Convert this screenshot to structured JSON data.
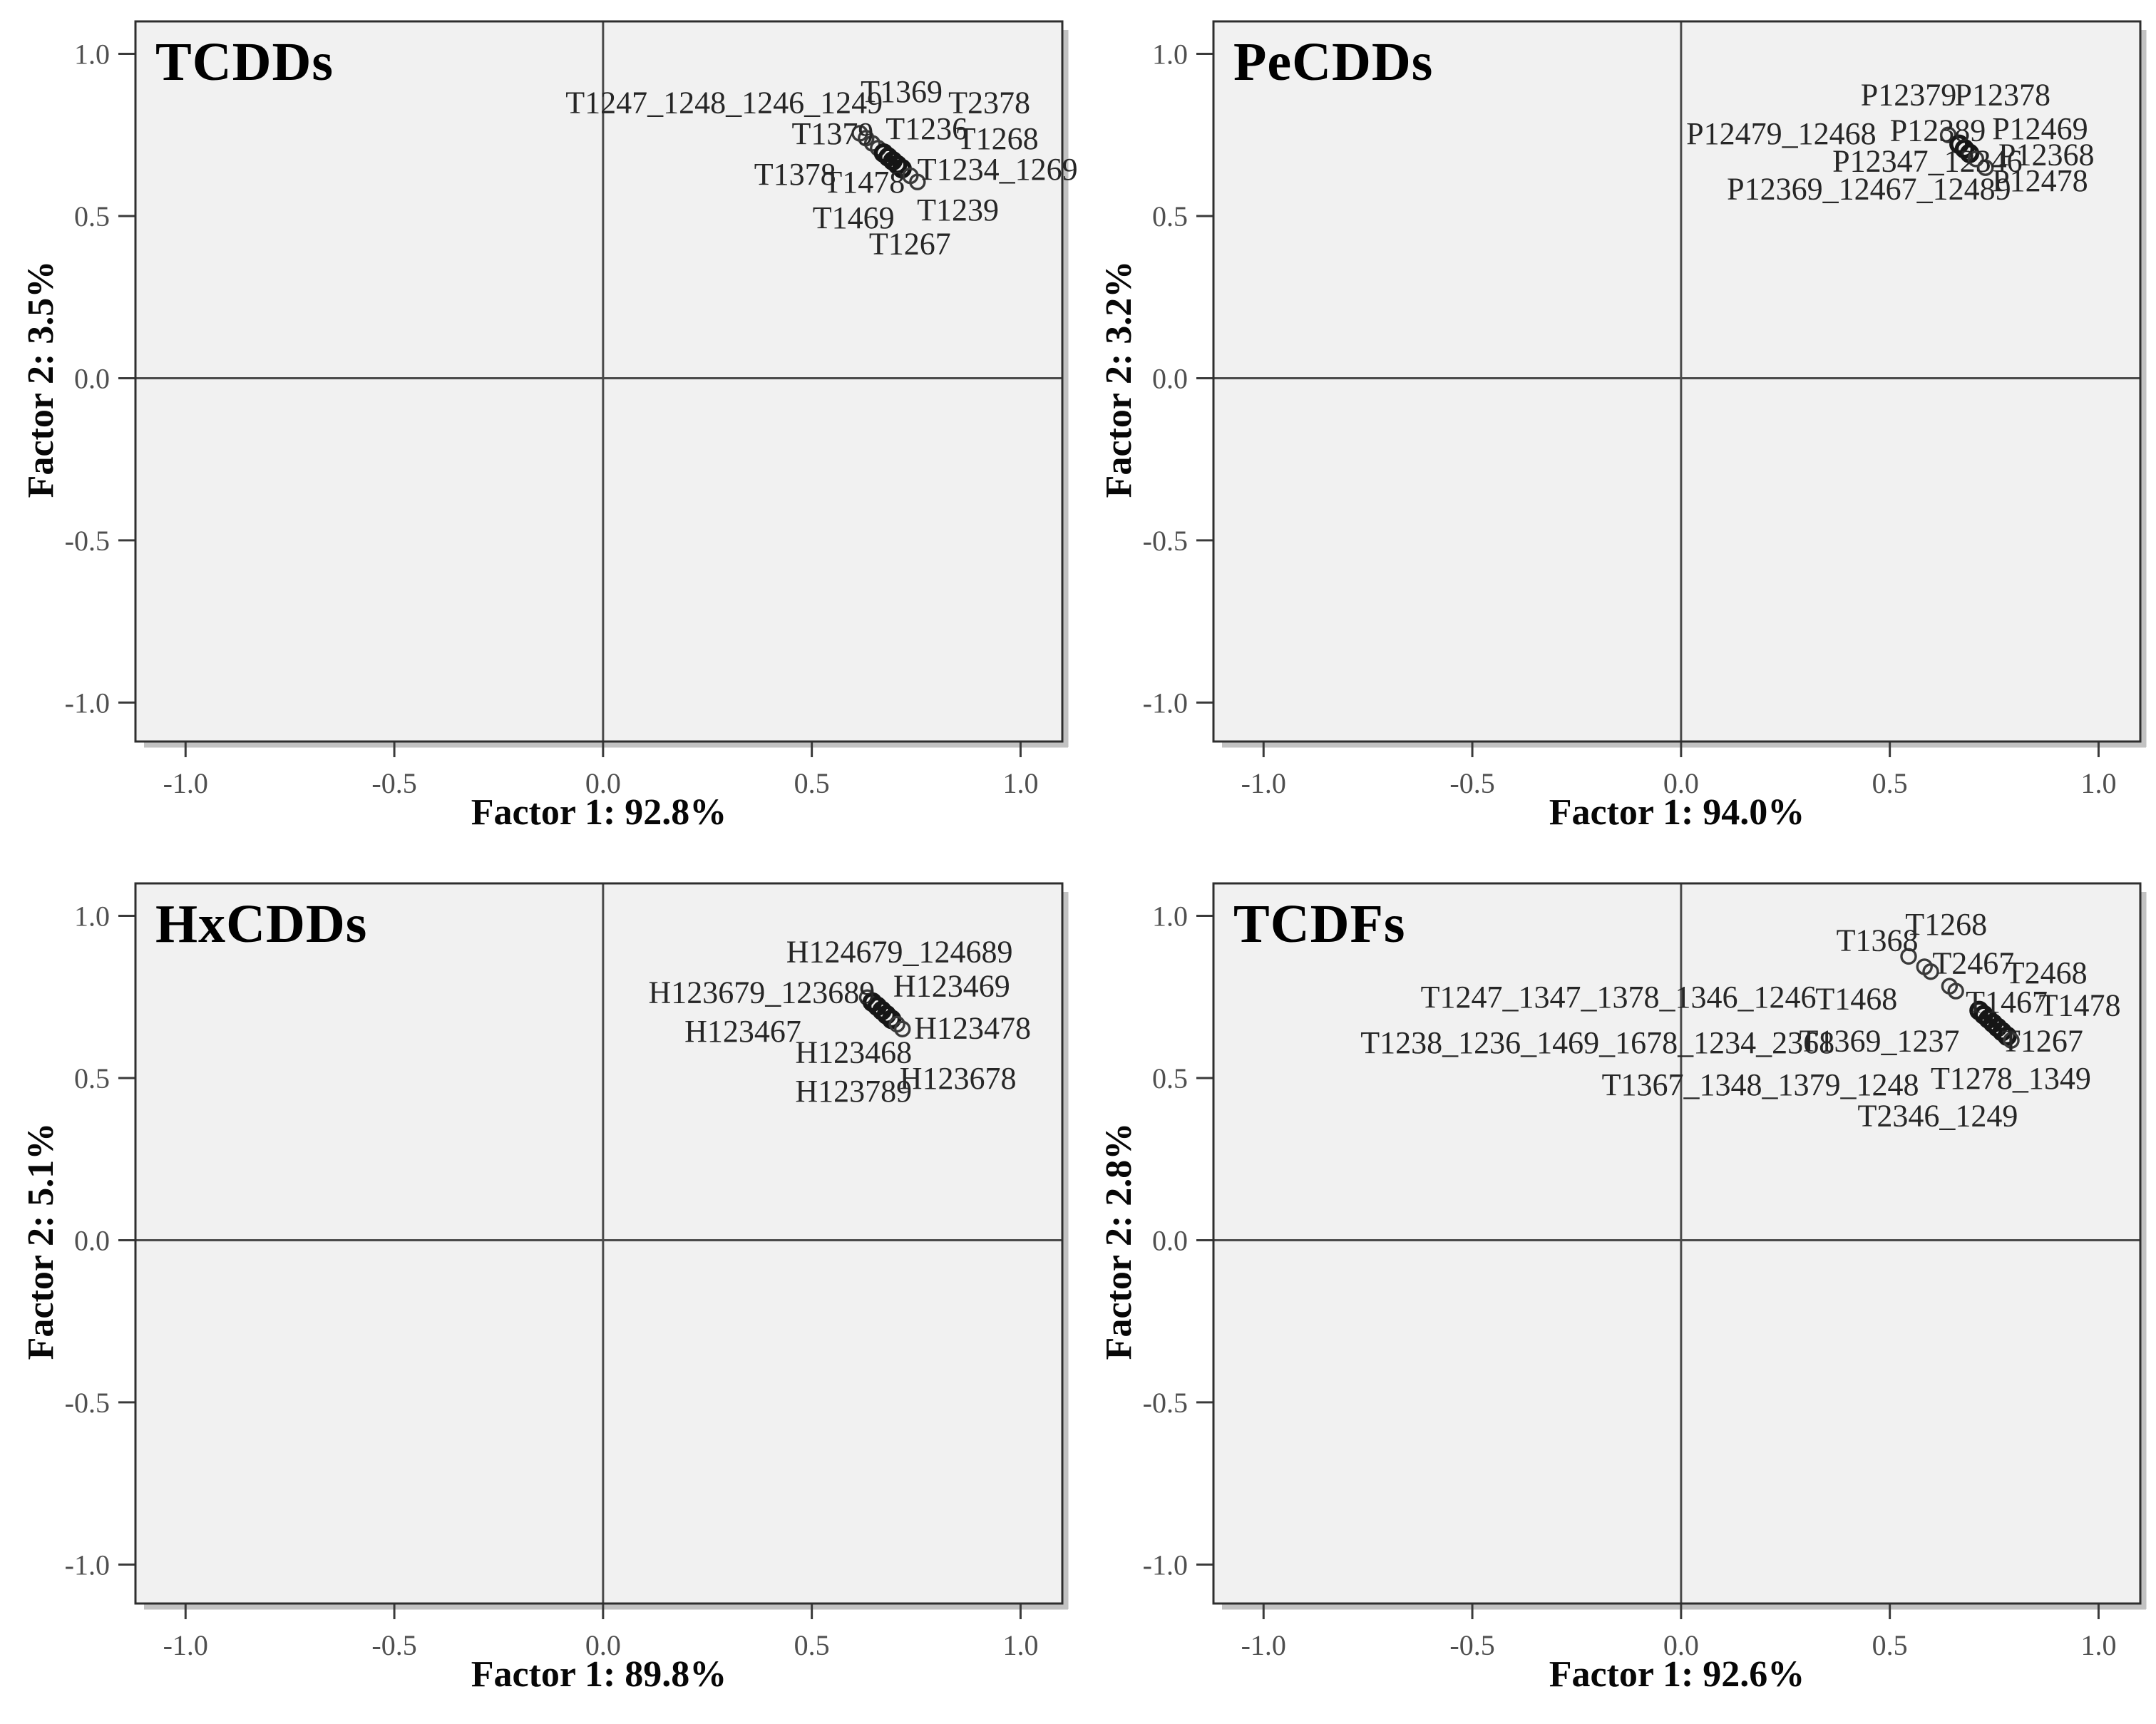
{
  "figure": {
    "background": "#ffffff",
    "plot_background": "#f1f1f1",
    "frame_color": "#2e2e2e",
    "shadow_color": "#c2c2c2",
    "axis_line_color": "#4a4a4a",
    "tick_color": "#3a3a3a",
    "tick_label_color": "#4f4f4f",
    "point_stroke_color": "#3a3a3a",
    "point_emph_color": "#161616",
    "annotation_color": "#262626",
    "marker": "open-circle"
  },
  "chart_data": [
    {
      "type": "scatter",
      "title": "TCDDs",
      "xlabel": "Factor 1: 92.8%",
      "ylabel": "Factor 2: 3.5%",
      "xlim": [
        -1.12,
        1.1
      ],
      "ylim": [
        -1.12,
        1.1
      ],
      "grid": false,
      "quadrant_lines": true,
      "ticks": {
        "values": [
          -1.0,
          -0.5,
          0.0,
          0.5,
          1.0
        ],
        "labels": [
          "-1.0",
          "-0.5",
          "0.0",
          "0.5",
          "1.0"
        ]
      },
      "points": [
        {
          "x": 0.615,
          "y": 0.755
        },
        {
          "x": 0.63,
          "y": 0.74
        },
        {
          "x": 0.645,
          "y": 0.724
        },
        {
          "x": 0.659,
          "y": 0.709
        },
        {
          "x": 0.672,
          "y": 0.694,
          "emph": true
        },
        {
          "x": 0.683,
          "y": 0.682,
          "emph": true
        },
        {
          "x": 0.694,
          "y": 0.67,
          "emph": true
        },
        {
          "x": 0.705,
          "y": 0.658,
          "emph": true
        },
        {
          "x": 0.716,
          "y": 0.646,
          "emph": true
        },
        {
          "x": 0.736,
          "y": 0.624
        },
        {
          "x": 0.753,
          "y": 0.605
        }
      ],
      "annotations": [
        {
          "text": "T1247_1248_1246_1249",
          "x": 0.29,
          "y": 0.85
        },
        {
          "text": "T1369",
          "x": 0.715,
          "y": 0.885
        },
        {
          "text": "T2378",
          "x": 0.925,
          "y": 0.85
        },
        {
          "text": "T1379",
          "x": 0.55,
          "y": 0.755
        },
        {
          "text": "T1236",
          "x": 0.775,
          "y": 0.77
        },
        {
          "text": "T1268",
          "x": 0.945,
          "y": 0.74
        },
        {
          "text": "T1378",
          "x": 0.46,
          "y": 0.63
        },
        {
          "text": "T1478",
          "x": 0.625,
          "y": 0.605
        },
        {
          "text": "T1234_1269",
          "x": 0.945,
          "y": 0.645
        },
        {
          "text": "T1469",
          "x": 0.6,
          "y": 0.495
        },
        {
          "text": "T1239",
          "x": 0.85,
          "y": 0.52
        },
        {
          "text": "T1267",
          "x": 0.735,
          "y": 0.415
        }
      ]
    },
    {
      "type": "scatter",
      "title": "PeCDDs",
      "xlabel": "Factor 1: 94.0%",
      "ylabel": "Factor 2: 3.2%",
      "xlim": [
        -1.12,
        1.1
      ],
      "ylim": [
        -1.12,
        1.1
      ],
      "grid": false,
      "quadrant_lines": true,
      "ticks": {
        "values": [
          -1.0,
          -0.5,
          0.0,
          0.5,
          1.0
        ],
        "labels": [
          "-1.0",
          "-0.5",
          "0.0",
          "0.5",
          "1.0"
        ]
      },
      "points": [
        {
          "x": 0.64,
          "y": 0.75
        },
        {
          "x": 0.666,
          "y": 0.721,
          "emph": true
        },
        {
          "x": 0.679,
          "y": 0.707,
          "emph": true
        },
        {
          "x": 0.691,
          "y": 0.693,
          "emph": true
        },
        {
          "x": 0.706,
          "y": 0.676
        },
        {
          "x": 0.729,
          "y": 0.649
        }
      ],
      "annotations": [
        {
          "text": "P12379",
          "x": 0.545,
          "y": 0.875
        },
        {
          "text": "P12378",
          "x": 0.77,
          "y": 0.875
        },
        {
          "text": "P12479_12468",
          "x": 0.24,
          "y": 0.755
        },
        {
          "text": "P12389",
          "x": 0.615,
          "y": 0.765
        },
        {
          "text": "P12469",
          "x": 0.86,
          "y": 0.77
        },
        {
          "text": "P12347_12346",
          "x": 0.59,
          "y": 0.67
        },
        {
          "text": "P12368",
          "x": 0.875,
          "y": 0.69
        },
        {
          "text": "P12369_12467_12489",
          "x": 0.45,
          "y": 0.585
        },
        {
          "text": "P12478",
          "x": 0.86,
          "y": 0.61
        }
      ]
    },
    {
      "type": "scatter",
      "title": "HxCDDs",
      "xlabel": "Factor 1: 89.8%",
      "ylabel": "Factor 2: 5.1%",
      "xlim": [
        -1.12,
        1.1
      ],
      "ylim": [
        -1.12,
        1.1
      ],
      "grid": false,
      "quadrant_lines": true,
      "ticks": {
        "values": [
          -1.0,
          -0.5,
          0.0,
          0.5,
          1.0
        ],
        "labels": [
          "-1.0",
          "-0.5",
          "0.0",
          "0.5",
          "1.0"
        ]
      },
      "points": [
        {
          "x": 0.633,
          "y": 0.748
        },
        {
          "x": 0.645,
          "y": 0.734,
          "emph": true
        },
        {
          "x": 0.657,
          "y": 0.721,
          "emph": true
        },
        {
          "x": 0.668,
          "y": 0.708,
          "emph": true
        },
        {
          "x": 0.679,
          "y": 0.695,
          "emph": true
        },
        {
          "x": 0.691,
          "y": 0.681,
          "emph": true
        },
        {
          "x": 0.704,
          "y": 0.666
        },
        {
          "x": 0.717,
          "y": 0.651
        }
      ],
      "annotations": [
        {
          "text": "H124679_124689",
          "x": 0.71,
          "y": 0.89
        },
        {
          "text": "H123679_123689",
          "x": 0.38,
          "y": 0.765
        },
        {
          "text": "H123469",
          "x": 0.835,
          "y": 0.785
        },
        {
          "text": "H123467",
          "x": 0.335,
          "y": 0.645
        },
        {
          "text": "H123478",
          "x": 0.885,
          "y": 0.655
        },
        {
          "text": "H123468",
          "x": 0.6,
          "y": 0.58
        },
        {
          "text": "H123789",
          "x": 0.6,
          "y": 0.46
        },
        {
          "text": "H123678",
          "x": 0.85,
          "y": 0.5
        }
      ]
    },
    {
      "type": "scatter",
      "title": "TCDFs",
      "xlabel": "Factor 1: 92.6%",
      "ylabel": "Factor 2: 2.8%",
      "xlim": [
        -1.12,
        1.1
      ],
      "ylim": [
        -1.12,
        1.1
      ],
      "grid": false,
      "quadrant_lines": true,
      "ticks": {
        "values": [
          -1.0,
          -0.5,
          0.0,
          0.5,
          1.0
        ],
        "labels": [
          "-1.0",
          "-0.5",
          "0.0",
          "0.5",
          "1.0"
        ]
      },
      "points": [
        {
          "x": 0.545,
          "y": 0.875
        },
        {
          "x": 0.583,
          "y": 0.843
        },
        {
          "x": 0.598,
          "y": 0.828
        },
        {
          "x": 0.643,
          "y": 0.783
        },
        {
          "x": 0.658,
          "y": 0.768
        },
        {
          "x": 0.714,
          "y": 0.708,
          "emph": true
        },
        {
          "x": 0.725,
          "y": 0.695,
          "emph": true
        },
        {
          "x": 0.736,
          "y": 0.682,
          "emph": true
        },
        {
          "x": 0.747,
          "y": 0.669,
          "emph": true
        },
        {
          "x": 0.758,
          "y": 0.656,
          "emph": true
        },
        {
          "x": 0.769,
          "y": 0.643,
          "emph": true
        },
        {
          "x": 0.781,
          "y": 0.629,
          "emph": true
        },
        {
          "x": 0.791,
          "y": 0.616
        }
      ],
      "annotations": [
        {
          "text": "T1368",
          "x": 0.47,
          "y": 0.925
        },
        {
          "text": "T1268",
          "x": 0.635,
          "y": 0.975
        },
        {
          "text": "T2467",
          "x": 0.7,
          "y": 0.855
        },
        {
          "text": "T2468",
          "x": 0.875,
          "y": 0.825
        },
        {
          "text": "T1247_1347_1378_1346_1246",
          "x": -0.15,
          "y": 0.75
        },
        {
          "text": "T1468",
          "x": 0.42,
          "y": 0.745
        },
        {
          "text": "T1467",
          "x": 0.78,
          "y": 0.735
        },
        {
          "text": "T1478",
          "x": 0.955,
          "y": 0.725
        },
        {
          "text": "T1238_1236_1469_1678_1234_2368",
          "x": -0.2,
          "y": 0.61
        },
        {
          "text": "T1369_1237",
          "x": 0.475,
          "y": 0.615
        },
        {
          "text": "T1267",
          "x": 0.865,
          "y": 0.615
        },
        {
          "text": "T1367_1348_1379_1248",
          "x": 0.19,
          "y": 0.48
        },
        {
          "text": "T1278_1349",
          "x": 0.79,
          "y": 0.5
        },
        {
          "text": "T2346_1249",
          "x": 0.615,
          "y": 0.385
        }
      ]
    }
  ]
}
